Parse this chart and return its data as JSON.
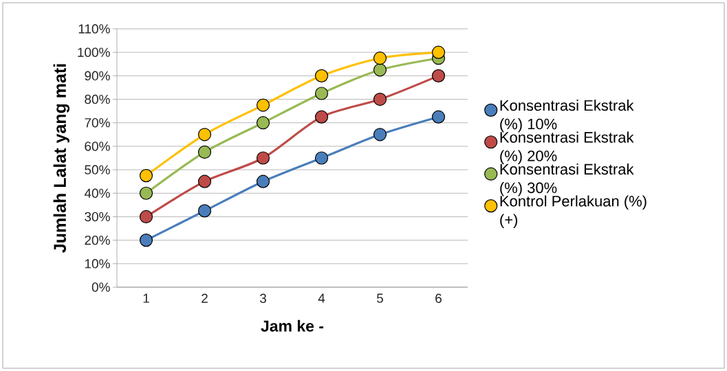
{
  "chart_data": {
    "type": "line",
    "xlabel": "Jam ke -",
    "ylabel": "Jumlah Lalat yang mati",
    "categories": [
      "1",
      "2",
      "3",
      "4",
      "5",
      "6"
    ],
    "series": [
      {
        "name": "Konsentrasi Ekstrak (%) 10%",
        "color": "#4a7ebb",
        "values": [
          20,
          32.5,
          45,
          55,
          65,
          72.5
        ]
      },
      {
        "name": "Konsentrasi Ekstrak (%) 20%",
        "color": "#be4b48",
        "values": [
          30,
          45,
          55,
          72.5,
          80,
          90
        ]
      },
      {
        "name": "Konsentrasi Ekstrak (%) 30%",
        "color": "#98b954",
        "values": [
          40,
          57.5,
          70,
          82.5,
          92.5,
          97.5
        ]
      },
      {
        "name": "Kontrol Perlakuan (%) (+)",
        "color": "#ffc000",
        "values": [
          47.5,
          65,
          77.5,
          90,
          97.5,
          100
        ]
      }
    ],
    "ylim": [
      0,
      110
    ],
    "yticks": [
      {
        "value": 0,
        "label": "0%"
      },
      {
        "value": 10,
        "label": "10%"
      },
      {
        "value": 20,
        "label": "20%"
      },
      {
        "value": 30,
        "label": "30%"
      },
      {
        "value": 40,
        "label": "40%"
      },
      {
        "value": 50,
        "label": "50%"
      },
      {
        "value": 60,
        "label": "60%"
      },
      {
        "value": 70,
        "label": "70%"
      },
      {
        "value": 80,
        "label": "80%"
      },
      {
        "value": 90,
        "label": "90%"
      },
      {
        "value": 100,
        "label": "100%"
      },
      {
        "value": 110,
        "label": "110%"
      }
    ],
    "grid": "y",
    "legend": "right",
    "marker": "circle",
    "line_style": "solid"
  }
}
